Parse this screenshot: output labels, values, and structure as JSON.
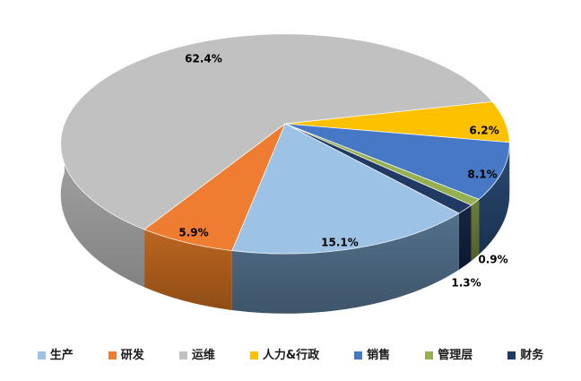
{
  "chart_data": {
    "type": "pie",
    "style": "3d",
    "title": "",
    "data_labels": "percentage",
    "legend_position": "bottom",
    "total_of_shown_percentages": 99.9,
    "slices": [
      {
        "label": "生产",
        "value": 15.1,
        "display": "15.1%",
        "color": "#9CC3E5",
        "side_color": "#52708C",
        "side_color2": "#3E5569"
      },
      {
        "label": "研发",
        "value": 5.9,
        "display": "5.9%",
        "color": "#EE7D31",
        "side_color": "#BC6520",
        "side_color2": "#8F4D15"
      },
      {
        "label": "运维",
        "value": 62.4,
        "display": "62.4%",
        "color": "#C1C1C1",
        "side_color": "#A8A8A8",
        "side_color2": "#828282"
      },
      {
        "label": "人力&行政",
        "value": 6.2,
        "display": "6.2%",
        "color": "#FDC100",
        "side_color": "#BD8F00",
        "side_color2": "#9A7400"
      },
      {
        "label": "销售",
        "value": 8.1,
        "display": "8.1%",
        "color": "#4678C6",
        "side_color": "#2B4A72",
        "side_color2": "#1B3150"
      },
      {
        "label": "管理层",
        "value": 0.9,
        "display": "0.9%",
        "color": "#95B050",
        "side_color": "#6B7F35",
        "side_color2": "#535F28"
      },
      {
        "label": "财务",
        "value": 1.3,
        "display": "1.3%",
        "color": "#203A64",
        "side_color": "#16263F",
        "side_color2": "#0D1830"
      }
    ],
    "clockwise_order_from_right": [
      "人力&行政",
      "销售",
      "管理层",
      "财务",
      "生产",
      "研发",
      "运维"
    ]
  }
}
